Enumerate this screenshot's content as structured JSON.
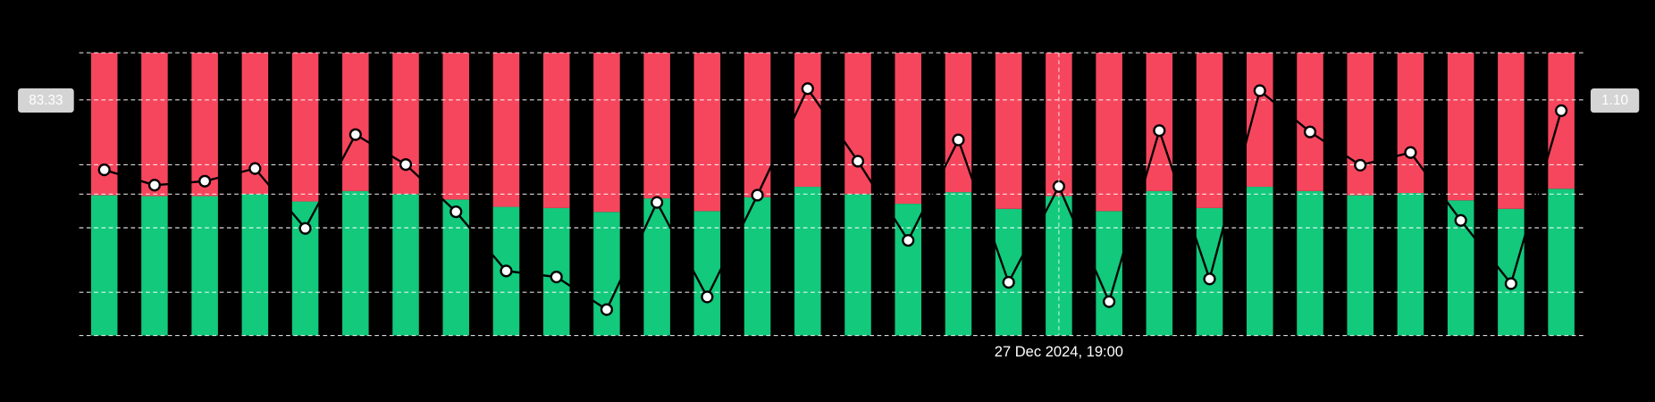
{
  "chart_data": {
    "type": "stacked-bar-line",
    "categories": [
      null,
      null,
      null,
      null,
      null,
      null,
      null,
      null,
      null,
      null,
      null,
      null,
      null,
      null,
      null,
      null,
      null,
      null,
      null,
      "27 Dec 2024, 19:00",
      null,
      null,
      null,
      null,
      null,
      null,
      null,
      null,
      null,
      null
    ],
    "series": [
      {
        "color": "#12c97c",
        "values": [
          49.6,
          49.3,
          49.3,
          50.0,
          47.4,
          51.1,
          50.0,
          48.1,
          45.5,
          45.1,
          43.7,
          48.5,
          44.0,
          48.9,
          52.6,
          50.0,
          46.6,
          50.7,
          44.8,
          49.3,
          44.0,
          51.1,
          45.1,
          52.6,
          51.1,
          49.6,
          50.4,
          47.8,
          44.8,
          51.9
        ]
      },
      {
        "color": "#f6465d",
        "values": [
          50.4,
          50.7,
          50.7,
          50.0,
          52.6,
          48.9,
          50.0,
          51.9,
          54.5,
          54.9,
          56.3,
          51.5,
          56.0,
          51.1,
          47.4,
          50.0,
          53.4,
          49.3,
          55.2,
          50.7,
          56.0,
          48.9,
          54.9,
          47.4,
          48.9,
          50.4,
          49.6,
          52.2,
          55.2,
          48.1
        ]
      },
      {
        "color": "#000000",
        "axis": "y2",
        "values": [
          0.995,
          0.972,
          0.978,
          0.997,
          0.907,
          1.048,
          1.003,
          0.932,
          0.843,
          0.834,
          0.785,
          0.946,
          0.804,
          0.957,
          1.117,
          1.008,
          0.889,
          1.04,
          0.826,
          0.97,
          0.797,
          1.054,
          0.831,
          1.114,
          1.052,
          1.002,
          1.021,
          0.919,
          0.824,
          1.084
        ]
      }
    ],
    "ylim": [
      0,
      100
    ],
    "y2lim": [
      0.746,
      1.171
    ],
    "grid_lines": [
      0,
      15.3,
      38.1,
      50,
      60.4,
      83.33,
      100
    ],
    "crosshair_y": 83.33,
    "crosshair_y2": {
      "value": 1.1,
      "label": "1.10"
    }
  }
}
